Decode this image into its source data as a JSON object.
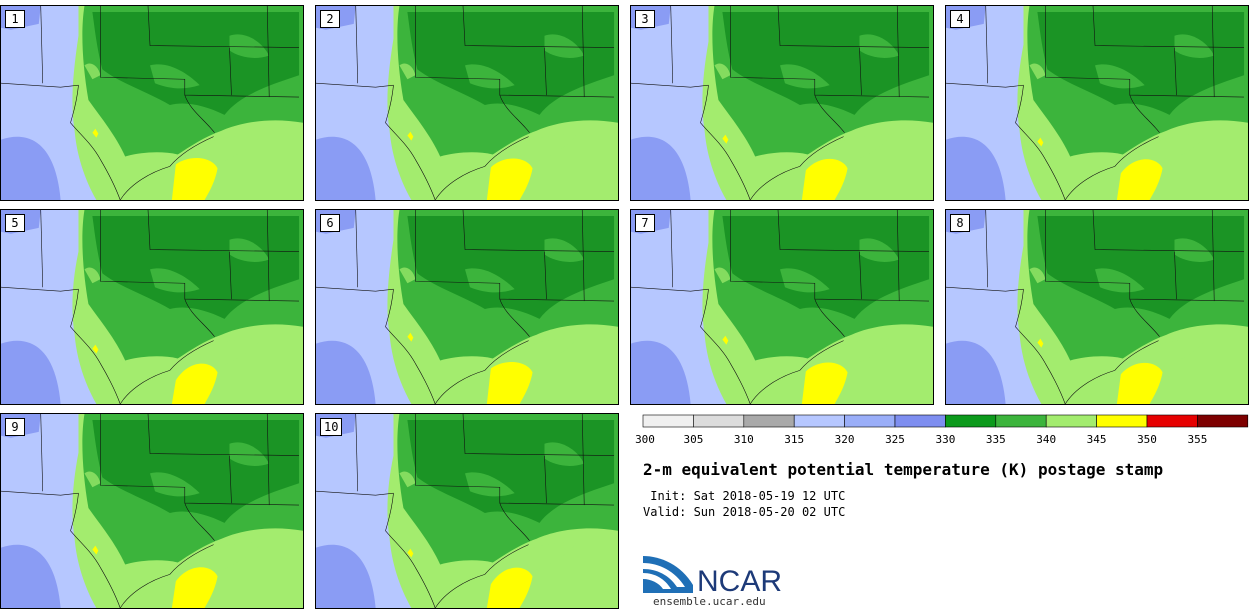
{
  "panels": [
    {
      "label": "1"
    },
    {
      "label": "2"
    },
    {
      "label": "3"
    },
    {
      "label": "4"
    },
    {
      "label": "5"
    },
    {
      "label": "6"
    },
    {
      "label": "7"
    },
    {
      "label": "8"
    },
    {
      "label": "9"
    },
    {
      "label": "10"
    }
  ],
  "legend": {
    "ticks": [
      "300",
      "305",
      "310",
      "315",
      "320",
      "325",
      "330",
      "335",
      "340",
      "345",
      "350",
      "355"
    ],
    "colors": [
      "#f0f0f0",
      "#dcdcdc",
      "#a9a9a9",
      "#b6c7ff",
      "#9aaef8",
      "#7e8ef0",
      "#0c9a1c",
      "#3cb43c",
      "#a3ec6e",
      "#ffff00",
      "#e60000",
      "#7d0000"
    ]
  },
  "colors": {
    "dark_green": "#108a1e",
    "mid_green": "#3cb43c",
    "light_green": "#a3ec6e",
    "yellow": "#ffff00",
    "light_blue": "#b6c7ff",
    "blue": "#8a9cf4",
    "border": "#111111"
  },
  "title": "2-m equivalent potential temperature (K) postage stamp",
  "init_text": " Init: Sat 2018-05-19 12 UTC",
  "valid_text": "Valid: Sun 2018-05-20 02 UTC",
  "logo": {
    "text": "NCAR",
    "name": "ncar-logo"
  },
  "site": "ensemble.ucar.edu"
}
